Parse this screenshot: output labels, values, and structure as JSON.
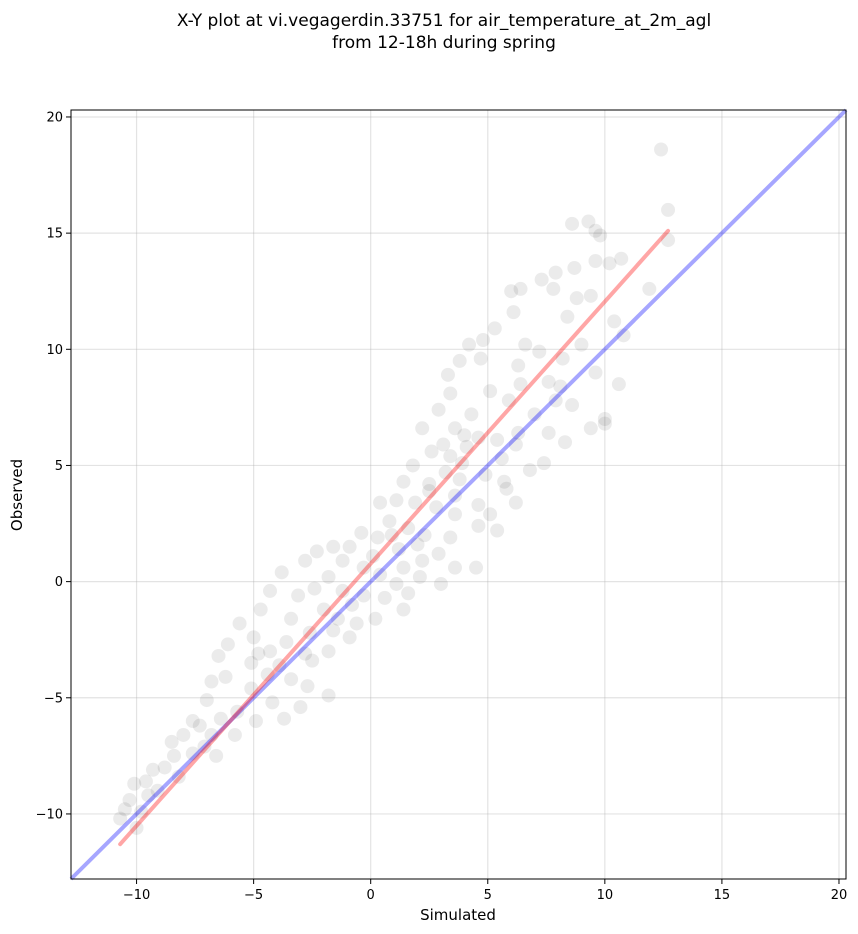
{
  "chart_data": {
    "type": "scatter",
    "title": "X-Y plot at vi.vegagerdin.33751 for air_temperature_at_2m_agl",
    "subtitle": "from 12-18h during spring",
    "xlabel": "Simulated",
    "ylabel": "Observed",
    "xlim": [
      -12.8,
      20.3
    ],
    "ylim": [
      -12.8,
      20.3
    ],
    "xticks": [
      -10,
      -5,
      0,
      5,
      10,
      15,
      20
    ],
    "yticks": [
      -10,
      -5,
      0,
      5,
      10,
      15,
      20
    ],
    "xtick_labels": [
      "−10",
      "−5",
      "0",
      "5",
      "10",
      "15",
      "20"
    ],
    "ytick_labels": [
      "−10",
      "−5",
      "0",
      "5",
      "10",
      "15",
      "20"
    ],
    "grid": true,
    "point_color": "#000000",
    "point_alpha": 0.08,
    "reference_line": {
      "color": "#0000ff",
      "alpha": 0.35,
      "x": [
        -12.8,
        20.3
      ],
      "y": [
        -12.8,
        20.3
      ]
    },
    "regression_line": {
      "color": "#ff0000",
      "alpha": 0.35,
      "x": [
        -10.7,
        12.7
      ],
      "y": [
        -11.3,
        15.1
      ]
    },
    "points": [
      [
        12.4,
        18.6
      ],
      [
        12.7,
        16.0
      ],
      [
        12.7,
        14.7
      ],
      [
        9.3,
        15.5
      ],
      [
        8.6,
        15.4
      ],
      [
        9.6,
        15.1
      ],
      [
        9.8,
        14.9
      ],
      [
        10.7,
        13.9
      ],
      [
        10.2,
        13.7
      ],
      [
        9.6,
        13.8
      ],
      [
        8.7,
        13.5
      ],
      [
        7.9,
        13.3
      ],
      [
        7.3,
        13.0
      ],
      [
        6.4,
        12.6
      ],
      [
        6.0,
        12.5
      ],
      [
        11.9,
        12.6
      ],
      [
        7.8,
        12.6
      ],
      [
        9.4,
        12.3
      ],
      [
        8.8,
        12.2
      ],
      [
        10.4,
        11.2
      ],
      [
        10.8,
        10.6
      ],
      [
        8.4,
        11.4
      ],
      [
        6.1,
        11.6
      ],
      [
        5.3,
        10.9
      ],
      [
        4.8,
        10.4
      ],
      [
        4.2,
        10.2
      ],
      [
        4.7,
        9.6
      ],
      [
        3.8,
        9.5
      ],
      [
        7.2,
        9.9
      ],
      [
        6.3,
        9.3
      ],
      [
        9.6,
        9.0
      ],
      [
        10.6,
        8.5
      ],
      [
        8.1,
        8.4
      ],
      [
        7.9,
        7.8
      ],
      [
        8.6,
        7.6
      ],
      [
        9.4,
        6.6
      ],
      [
        10.0,
        7.0
      ],
      [
        10.0,
        6.8
      ],
      [
        8.3,
        6.0
      ],
      [
        7.6,
        6.4
      ],
      [
        7.4,
        5.1
      ],
      [
        6.8,
        4.8
      ],
      [
        6.2,
        5.9
      ],
      [
        5.6,
        5.3
      ],
      [
        5.4,
        6.1
      ],
      [
        5.9,
        7.8
      ],
      [
        6.4,
        8.5
      ],
      [
        3.3,
        8.9
      ],
      [
        3.4,
        8.1
      ],
      [
        2.9,
        7.4
      ],
      [
        4.3,
        7.2
      ],
      [
        3.6,
        6.6
      ],
      [
        2.2,
        6.6
      ],
      [
        2.6,
        5.6
      ],
      [
        3.1,
        5.9
      ],
      [
        4.1,
        5.8
      ],
      [
        4.6,
        6.2
      ],
      [
        3.9,
        5.1
      ],
      [
        3.2,
        4.7
      ],
      [
        1.8,
        5.0
      ],
      [
        2.5,
        4.2
      ],
      [
        1.4,
        4.3
      ],
      [
        3.8,
        4.4
      ],
      [
        4.9,
        4.6
      ],
      [
        5.7,
        4.3
      ],
      [
        4.6,
        3.3
      ],
      [
        5.1,
        2.9
      ],
      [
        6.2,
        3.4
      ],
      [
        5.4,
        2.2
      ],
      [
        4.6,
        2.4
      ],
      [
        3.6,
        2.9
      ],
      [
        2.8,
        3.2
      ],
      [
        1.9,
        3.4
      ],
      [
        1.1,
        3.5
      ],
      [
        0.4,
        3.4
      ],
      [
        0.8,
        2.6
      ],
      [
        1.6,
        2.3
      ],
      [
        2.3,
        2.0
      ],
      [
        3.4,
        1.9
      ],
      [
        2.9,
        1.2
      ],
      [
        3.6,
        0.6
      ],
      [
        2.2,
        0.9
      ],
      [
        1.2,
        1.4
      ],
      [
        0.3,
        1.9
      ],
      [
        -0.4,
        2.1
      ],
      [
        -0.9,
        1.5
      ],
      [
        -1.2,
        0.9
      ],
      [
        0.1,
        1.1
      ],
      [
        1.4,
        0.6
      ],
      [
        2.1,
        0.2
      ],
      [
        1.1,
        -0.1
      ],
      [
        0.4,
        0.3
      ],
      [
        -0.3,
        0.6
      ],
      [
        -1.6,
        1.5
      ],
      [
        -2.3,
        1.3
      ],
      [
        -2.8,
        0.9
      ],
      [
        -1.8,
        0.2
      ],
      [
        -2.4,
        -0.3
      ],
      [
        -1.2,
        -0.4
      ],
      [
        -0.3,
        -0.6
      ],
      [
        0.6,
        -0.7
      ],
      [
        1.6,
        -0.5
      ],
      [
        -0.8,
        -1.0
      ],
      [
        -1.4,
        -1.6
      ],
      [
        -2.0,
        -1.2
      ],
      [
        -3.1,
        -0.6
      ],
      [
        -3.8,
        0.4
      ],
      [
        -4.3,
        -0.4
      ],
      [
        -4.7,
        -1.2
      ],
      [
        -3.4,
        -1.6
      ],
      [
        -2.6,
        -2.2
      ],
      [
        -1.6,
        -2.1
      ],
      [
        -0.6,
        -1.8
      ],
      [
        0.2,
        -1.6
      ],
      [
        -1.8,
        -3.0
      ],
      [
        -2.8,
        -3.1
      ],
      [
        -3.6,
        -2.6
      ],
      [
        -4.3,
        -3.0
      ],
      [
        -5.0,
        -2.4
      ],
      [
        -5.6,
        -1.8
      ],
      [
        -6.1,
        -2.7
      ],
      [
        -5.1,
        -3.5
      ],
      [
        -4.4,
        -4.0
      ],
      [
        -3.4,
        -4.2
      ],
      [
        -2.7,
        -4.5
      ],
      [
        -3.0,
        -5.4
      ],
      [
        -4.2,
        -5.2
      ],
      [
        -5.1,
        -4.6
      ],
      [
        -6.2,
        -4.1
      ],
      [
        -6.8,
        -4.3
      ],
      [
        -5.7,
        -5.6
      ],
      [
        -4.9,
        -6.0
      ],
      [
        -3.7,
        -5.9
      ],
      [
        -6.4,
        -5.9
      ],
      [
        -7.3,
        -6.2
      ],
      [
        -7.6,
        -6.0
      ],
      [
        -6.8,
        -6.6
      ],
      [
        -5.8,
        -6.6
      ],
      [
        -7.1,
        -7.1
      ],
      [
        -8.0,
        -6.6
      ],
      [
        -7.6,
        -7.4
      ],
      [
        -6.6,
        -7.5
      ],
      [
        -8.4,
        -7.5
      ],
      [
        -8.8,
        -8.0
      ],
      [
        -8.2,
        -8.4
      ],
      [
        -9.3,
        -8.1
      ],
      [
        -9.6,
        -8.6
      ],
      [
        -10.1,
        -8.7
      ],
      [
        -9.5,
        -9.2
      ],
      [
        -10.3,
        -9.4
      ],
      [
        -10.5,
        -9.8
      ],
      [
        -9.8,
        -9.9
      ],
      [
        -10.7,
        -10.2
      ],
      [
        -10.0,
        -10.6
      ],
      [
        -9.1,
        -9.0
      ],
      [
        -1.8,
        -4.9
      ],
      [
        -2.5,
        -3.4
      ],
      [
        -6.5,
        -3.2
      ],
      [
        3.0,
        -0.1
      ],
      [
        4.5,
        0.6
      ],
      [
        5.8,
        4.0
      ],
      [
        6.3,
        6.4
      ],
      [
        7.0,
        7.2
      ],
      [
        7.6,
        8.6
      ],
      [
        8.2,
        9.6
      ],
      [
        9.0,
        10.2
      ],
      [
        6.6,
        10.2
      ],
      [
        5.1,
        8.2
      ],
      [
        2.5,
        3.9
      ],
      [
        0.9,
        2.0
      ],
      [
        -0.9,
        -2.4
      ],
      [
        -3.9,
        -3.6
      ],
      [
        -4.8,
        -3.1
      ],
      [
        -7.0,
        -5.1
      ],
      [
        -8.5,
        -6.9
      ],
      [
        3.4,
        5.4
      ],
      [
        4.0,
        6.3
      ],
      [
        3.6,
        3.7
      ],
      [
        2.0,
        1.6
      ],
      [
        1.4,
        -1.2
      ]
    ]
  }
}
